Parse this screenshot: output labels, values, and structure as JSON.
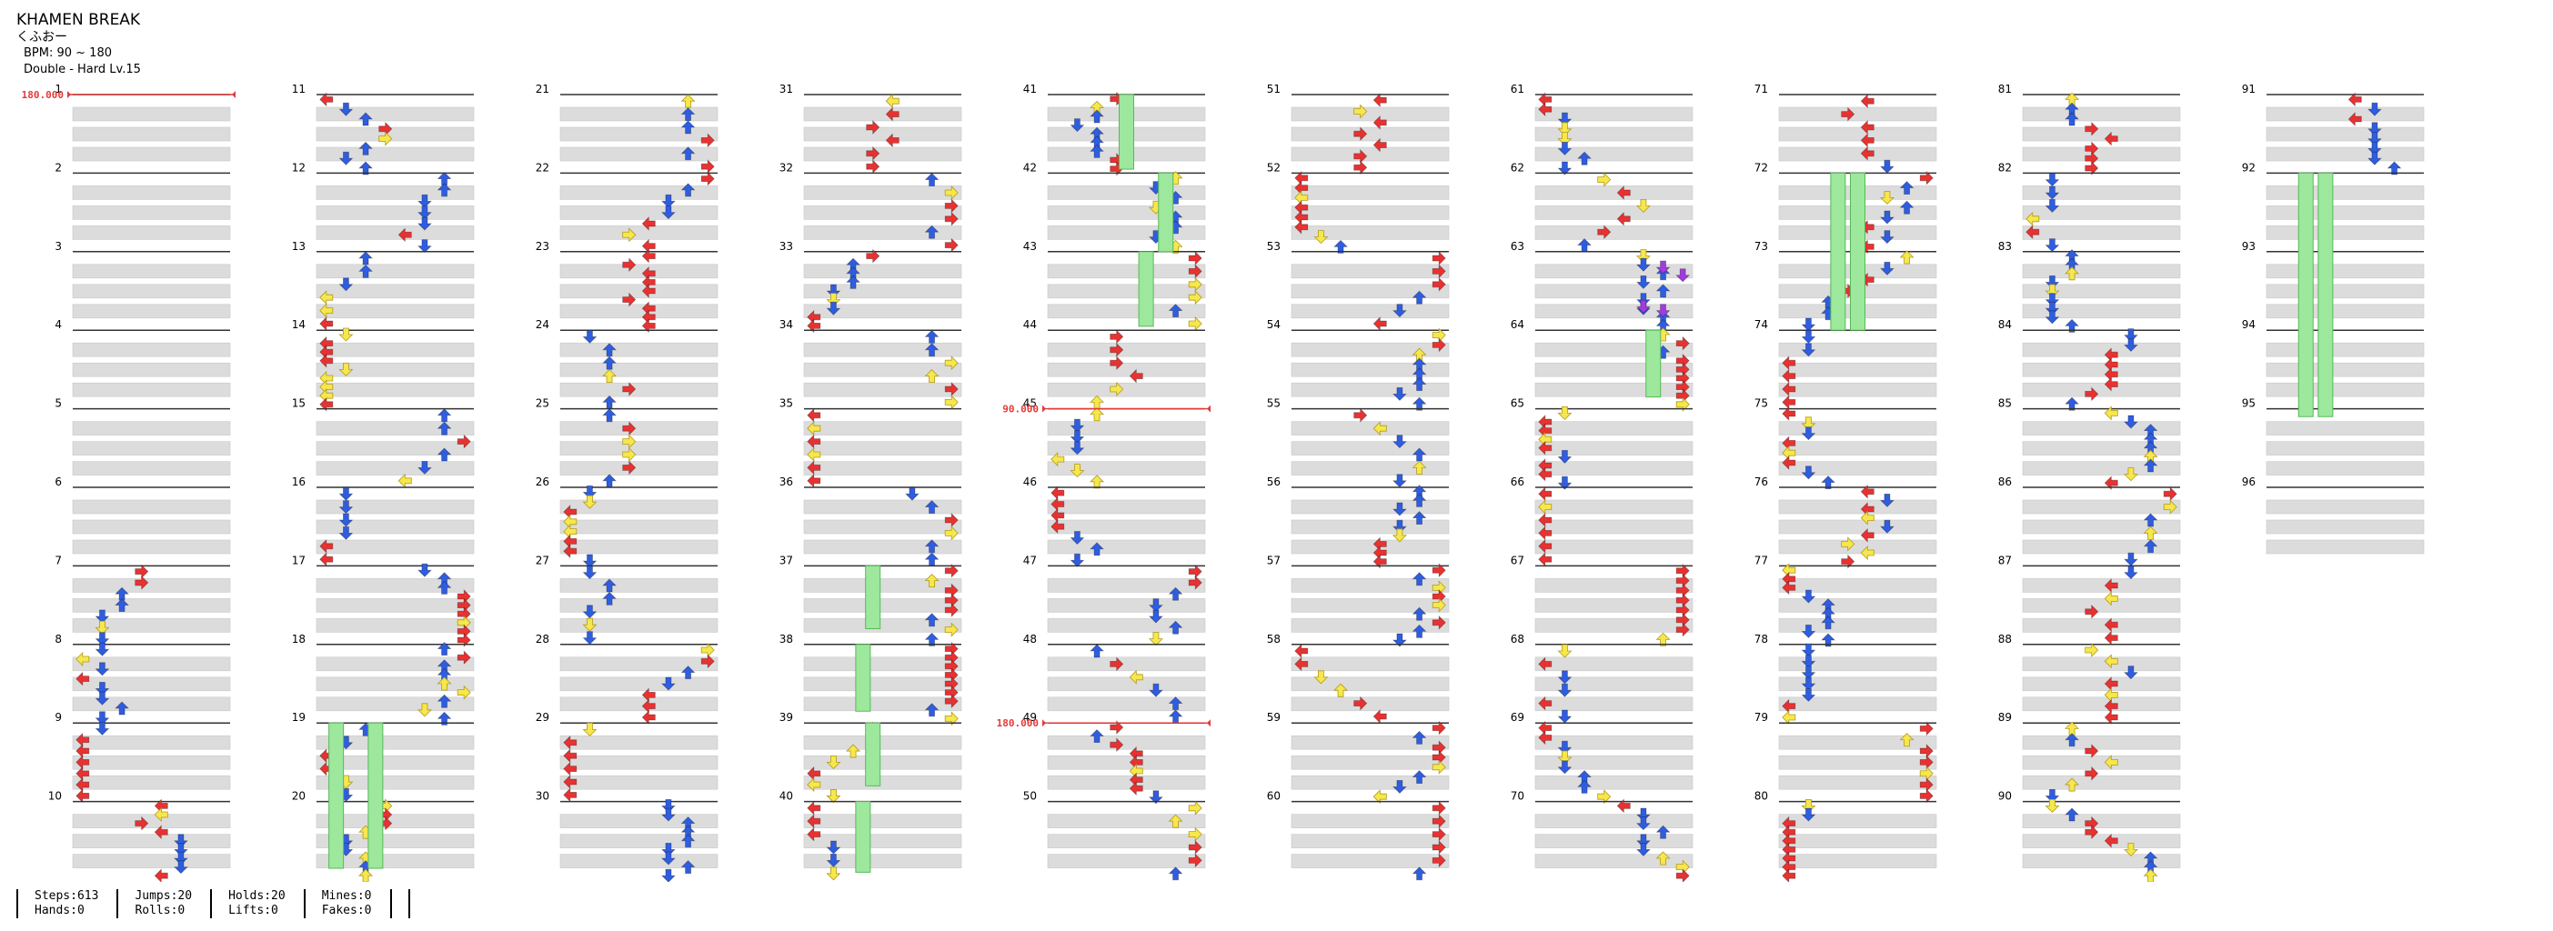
{
  "song": {
    "title": "KHAMEN BREAK",
    "artist": "くふおー",
    "bpm": "BPM: 90 ~ 180",
    "difficulty": "Double - Hard Lv.15"
  },
  "stats": [
    [
      "Steps:613",
      "Hands:0"
    ],
    [
      "Jumps:20",
      "Rolls:0"
    ],
    [
      "Holds:20",
      "Lifts:0"
    ],
    [
      "Mines:0",
      "Fakes:0"
    ]
  ],
  "bpm_changes": [
    {
      "measure": 1,
      "label": "180.000"
    },
    {
      "measure": 45,
      "label": "90.000"
    },
    {
      "measure": 49,
      "label": "180.000"
    }
  ],
  "measure_count": 96,
  "colors": {
    "left": "#e83232",
    "down": "#2f5de0",
    "up": "#2f5de0",
    "right": "#e83232",
    "eighth": "#f6e74c",
    "purple": "#a23ae0",
    "hold": "#9de89d",
    "hold_edge": "#58b958",
    "bpm_line": "#e23a3a"
  }
}
